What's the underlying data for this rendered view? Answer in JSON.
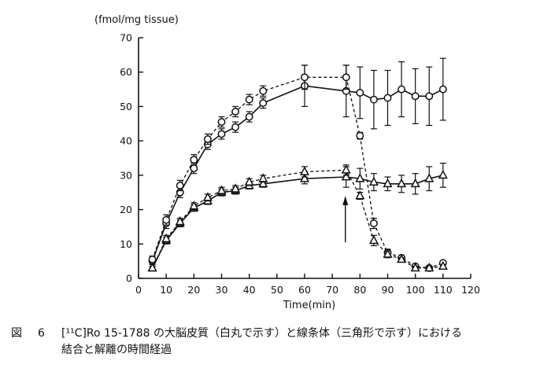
{
  "chart_data": {
    "type": "line",
    "ylabel": "(fmol/mg tissue)",
    "xlabel": "Time(min)",
    "xlim": [
      0,
      120
    ],
    "ylim": [
      0,
      70
    ],
    "xticks": [
      0,
      10,
      20,
      30,
      40,
      50,
      60,
      70,
      80,
      90,
      100,
      110,
      120
    ],
    "yticks": [
      0,
      10,
      20,
      30,
      40,
      50,
      60,
      70
    ],
    "grid": false,
    "arrow_at_x": 75,
    "series": [
      {
        "marker": "circle",
        "line": "solid",
        "points": [
          {
            "x": 5,
            "y": 5,
            "err": 1
          },
          {
            "x": 10,
            "y": 16,
            "err": 1.5
          },
          {
            "x": 15,
            "y": 25,
            "err": 1.5
          },
          {
            "x": 20,
            "y": 32,
            "err": 1.5
          },
          {
            "x": 25,
            "y": 39,
            "err": 1.5
          },
          {
            "x": 30,
            "y": 42,
            "err": 1.5
          },
          {
            "x": 35,
            "y": 44,
            "err": 1.5
          },
          {
            "x": 40,
            "y": 47,
            "err": 1.5
          },
          {
            "x": 45,
            "y": 51,
            "err": 1.5
          },
          {
            "x": 60,
            "y": 56,
            "err": 6
          },
          {
            "x": 75,
            "y": 54.5,
            "err": 7.5
          },
          {
            "x": 80,
            "y": 54,
            "err": 7.5
          },
          {
            "x": 85,
            "y": 52,
            "err": 8.5
          },
          {
            "x": 90,
            "y": 52.5,
            "err": 8
          },
          {
            "x": 95,
            "y": 55,
            "err": 8
          },
          {
            "x": 100,
            "y": 53,
            "err": 8
          },
          {
            "x": 105,
            "y": 53,
            "err": 8.5
          },
          {
            "x": 110,
            "y": 55,
            "err": 9
          }
        ]
      },
      {
        "marker": "circle",
        "line": "dashed",
        "points": [
          {
            "x": 5,
            "y": 5.5,
            "err": 1
          },
          {
            "x": 10,
            "y": 17,
            "err": 1.5
          },
          {
            "x": 15,
            "y": 27,
            "err": 1.5
          },
          {
            "x": 20,
            "y": 34.5,
            "err": 1.5
          },
          {
            "x": 25,
            "y": 40.5,
            "err": 1.5
          },
          {
            "x": 30,
            "y": 45.5,
            "err": 1.5
          },
          {
            "x": 35,
            "y": 48.5,
            "err": 1.5
          },
          {
            "x": 40,
            "y": 52,
            "err": 1.5
          },
          {
            "x": 45,
            "y": 54.5,
            "err": 1.5
          },
          {
            "x": 60,
            "y": 58.5,
            "err": 3.5
          },
          {
            "x": 75,
            "y": 58.5,
            "err": 3.5
          },
          {
            "x": 80,
            "y": 41.5,
            "err": 1
          },
          {
            "x": 85,
            "y": 16,
            "err": 1.5
          },
          {
            "x": 90,
            "y": 7.5,
            "err": 1
          },
          {
            "x": 95,
            "y": 6,
            "err": 0.5
          },
          {
            "x": 100,
            "y": 3.5,
            "err": 0.5
          },
          {
            "x": 105,
            "y": 3,
            "err": 0.5
          },
          {
            "x": 110,
            "y": 4.5,
            "err": 0.5
          }
        ]
      },
      {
        "marker": "triangle",
        "line": "solid",
        "points": [
          {
            "x": 5,
            "y": 3,
            "err": 0.5
          },
          {
            "x": 10,
            "y": 11,
            "err": 1
          },
          {
            "x": 15,
            "y": 16,
            "err": 1
          },
          {
            "x": 20,
            "y": 20.5,
            "err": 1
          },
          {
            "x": 25,
            "y": 22.5,
            "err": 1
          },
          {
            "x": 30,
            "y": 25,
            "err": 1
          },
          {
            "x": 35,
            "y": 25.5,
            "err": 1
          },
          {
            "x": 40,
            "y": 27,
            "err": 1
          },
          {
            "x": 45,
            "y": 27.5,
            "err": 1
          },
          {
            "x": 60,
            "y": 29,
            "err": 1.5
          },
          {
            "x": 75,
            "y": 29.5,
            "err": 3
          },
          {
            "x": 80,
            "y": 29,
            "err": 3
          },
          {
            "x": 85,
            "y": 28,
            "err": 2.5
          },
          {
            "x": 90,
            "y": 27.5,
            "err": 2
          },
          {
            "x": 95,
            "y": 27.5,
            "err": 2.5
          },
          {
            "x": 100,
            "y": 27.5,
            "err": 3
          },
          {
            "x": 105,
            "y": 29,
            "err": 3.5
          },
          {
            "x": 110,
            "y": 30,
            "err": 3.5
          }
        ]
      },
      {
        "marker": "triangle",
        "line": "dashed",
        "points": [
          {
            "x": 5,
            "y": 3,
            "err": 0.5
          },
          {
            "x": 10,
            "y": 11.5,
            "err": 1
          },
          {
            "x": 15,
            "y": 16.5,
            "err": 1
          },
          {
            "x": 20,
            "y": 21,
            "err": 1
          },
          {
            "x": 25,
            "y": 23.5,
            "err": 1
          },
          {
            "x": 30,
            "y": 25.5,
            "err": 1
          },
          {
            "x": 35,
            "y": 26,
            "err": 1
          },
          {
            "x": 40,
            "y": 28,
            "err": 1
          },
          {
            "x": 45,
            "y": 29,
            "err": 1
          },
          {
            "x": 60,
            "y": 31,
            "err": 1.5
          },
          {
            "x": 75,
            "y": 31.5,
            "err": 1.5
          },
          {
            "x": 80,
            "y": 24,
            "err": 1
          },
          {
            "x": 85,
            "y": 11,
            "err": 1.5
          },
          {
            "x": 90,
            "y": 7,
            "err": 1
          },
          {
            "x": 95,
            "y": 5.5,
            "err": 0.5
          },
          {
            "x": 100,
            "y": 3,
            "err": 0.5
          },
          {
            "x": 105,
            "y": 3,
            "err": 0.5
          },
          {
            "x": 110,
            "y": 3.5,
            "err": 0.5
          }
        ]
      }
    ]
  },
  "caption": {
    "label": "図",
    "number": "6",
    "line1": "[¹¹C]Ro 15-1788 の大脳皮質（白丸で示す）と線条体（三角形で示す）における",
    "line2": "結合と解離の時間経過"
  }
}
